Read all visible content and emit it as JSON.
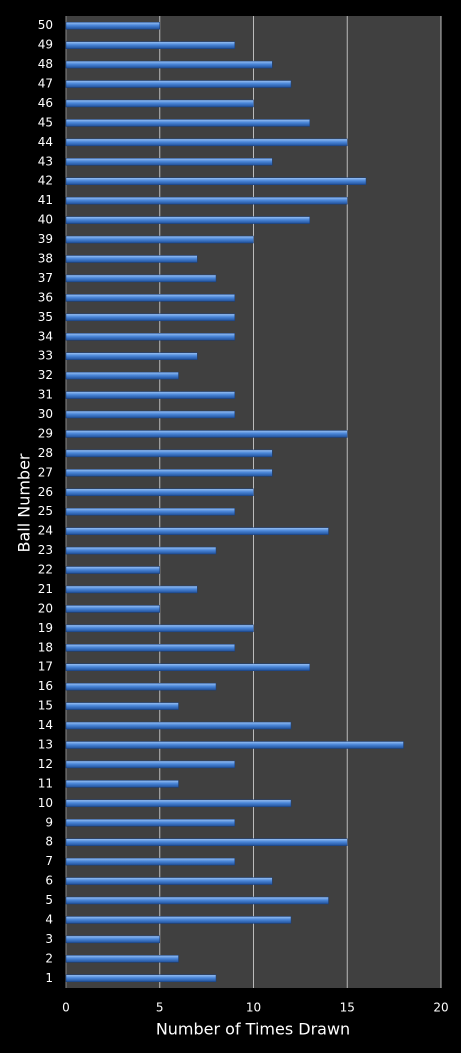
{
  "chart_data": {
    "type": "barh",
    "categories": [
      "1",
      "2",
      "3",
      "4",
      "5",
      "6",
      "7",
      "8",
      "9",
      "10",
      "11",
      "12",
      "13",
      "14",
      "15",
      "16",
      "17",
      "18",
      "19",
      "20",
      "21",
      "22",
      "23",
      "24",
      "25",
      "26",
      "27",
      "28",
      "29",
      "30",
      "31",
      "32",
      "33",
      "34",
      "35",
      "36",
      "37",
      "38",
      "39",
      "40",
      "41",
      "42",
      "43",
      "44",
      "45",
      "46",
      "47",
      "48",
      "49",
      "50"
    ],
    "values": [
      8,
      6,
      5,
      12,
      14,
      11,
      9,
      15,
      9,
      12,
      6,
      9,
      18,
      12,
      6,
      8,
      13,
      9,
      10,
      5,
      7,
      5,
      8,
      14,
      9,
      10,
      11,
      11,
      15,
      9,
      9,
      6,
      7,
      9,
      9,
      9,
      8,
      7,
      10,
      13,
      15,
      16,
      11,
      15,
      13,
      10,
      12,
      11,
      9,
      5
    ],
    "color": "#4a86d8",
    "xlabel": "Number of Times Drawn",
    "ylabel": "Ball Number",
    "xlim": [
      0,
      20
    ],
    "xticks": [
      0,
      5,
      10,
      15,
      20
    ],
    "grid": true
  }
}
